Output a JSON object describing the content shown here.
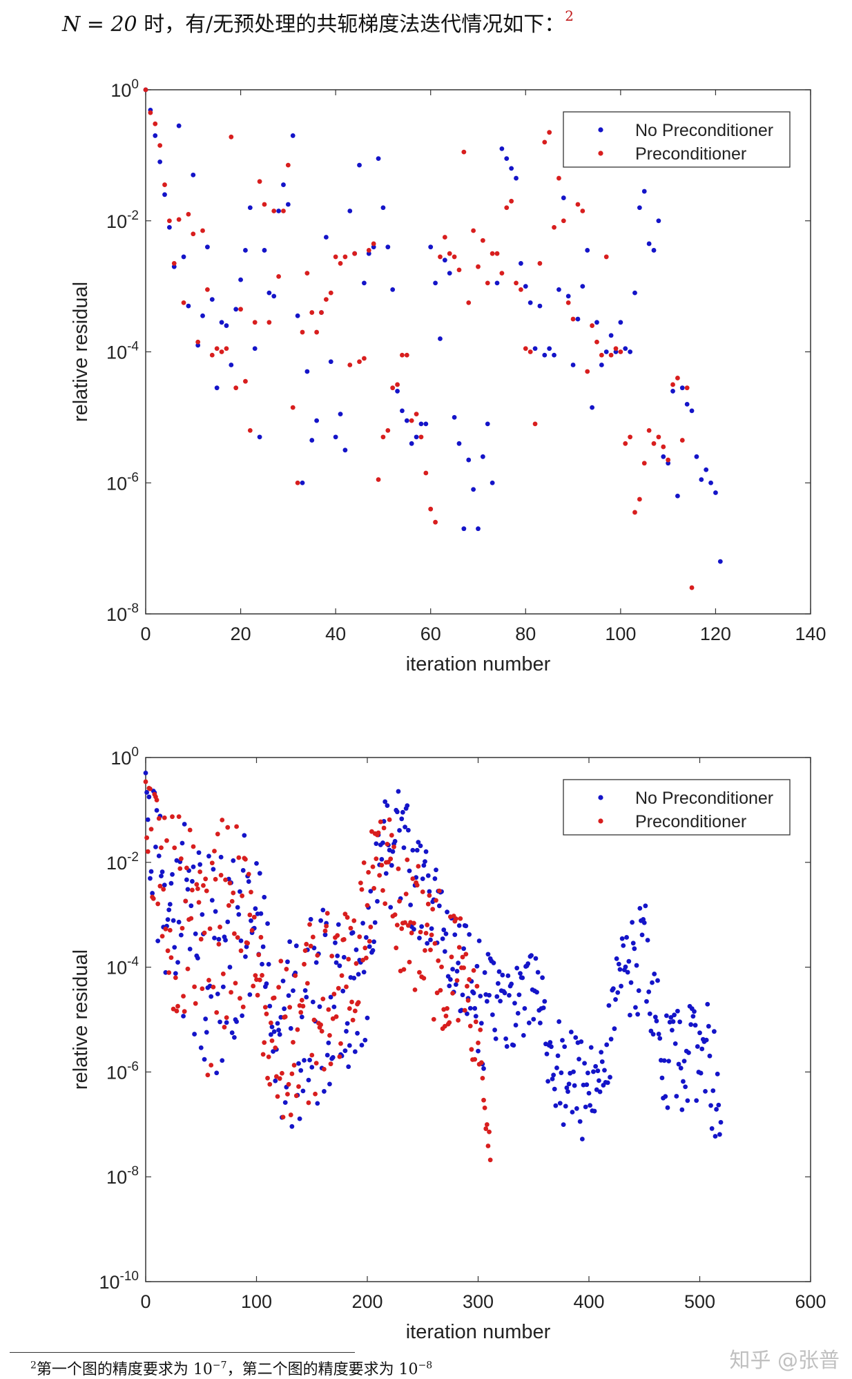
{
  "intro": {
    "math": "N = 20",
    "text": " 时，有/无预处理的共轭梯度法迭代情况如下：",
    "footnote_mark": "2"
  },
  "footnote": {
    "mark": "2",
    "prefix": "第一个图的精度要求为 10",
    "exp1": "−7",
    "middle": "，第二个图的精度要求为 10",
    "exp2": "−8"
  },
  "watermark": "知乎 @张普",
  "colors": {
    "no_precond": "#1414c8",
    "precond": "#d81e1e",
    "axis": "#333333"
  },
  "chart_data": [
    {
      "type": "scatter",
      "xlabel": "iteration number",
      "ylabel": "relative residual",
      "xlim": [
        0,
        140
      ],
      "xticks": [
        "0",
        "20",
        "40",
        "60",
        "80",
        "100",
        "120",
        "140"
      ],
      "yscale": "log",
      "ylim": [
        1e-08,
        1
      ],
      "yticks": [
        {
          "base": "10",
          "exp": "0"
        },
        {
          "base": "10",
          "exp": "-2"
        },
        {
          "base": "10",
          "exp": "-4"
        },
        {
          "base": "10",
          "exp": "-6"
        },
        {
          "base": "10",
          "exp": "-8"
        }
      ],
      "legend_position": "top-right",
      "series": [
        {
          "name": "No Preconditioner",
          "x": [
            0,
            1,
            2,
            3,
            4,
            5,
            6,
            7,
            8,
            9,
            10,
            11,
            12,
            13,
            14,
            15,
            16,
            17,
            18,
            19,
            20,
            21,
            22,
            23,
            24,
            25,
            26,
            27,
            28,
            29,
            30,
            31,
            32,
            33,
            34,
            35,
            36,
            37,
            38,
            39,
            40,
            41,
            42,
            43,
            44,
            45,
            46,
            47,
            48,
            49,
            50,
            51,
            52,
            53,
            54,
            55,
            56,
            57,
            58,
            59,
            60,
            61,
            62,
            63,
            64,
            65,
            66,
            67,
            68,
            69,
            70,
            71,
            72,
            73,
            74,
            75,
            76,
            77,
            78,
            79,
            80,
            81,
            82,
            83,
            84,
            85,
            86,
            87,
            88,
            89,
            90,
            91,
            92,
            93,
            94,
            95,
            96,
            97,
            98,
            99,
            100,
            101,
            102,
            103,
            104,
            105,
            106,
            107,
            108,
            109,
            110,
            111,
            112,
            113,
            114,
            115,
            116,
            117,
            118,
            119,
            120,
            121
          ],
          "y": [
            1.0,
            -0.31,
            -0.7,
            -1.1,
            -1.6,
            -2.1,
            -2.7,
            -0.55,
            -2.55,
            -3.3,
            -1.3,
            -3.9,
            -3.45,
            -2.4,
            -3.2,
            -4.55,
            -3.55,
            -3.6,
            -4.2,
            -3.35,
            -2.9,
            -2.45,
            -1.8,
            -3.95,
            -5.3,
            -2.45,
            -3.1,
            -3.15,
            -1.85,
            -1.45,
            -1.75,
            -0.7,
            -3.45,
            -6.0,
            -4.3,
            -5.35,
            -5.05,
            -3.4,
            -2.25,
            -4.15,
            -5.3,
            -4.95,
            -5.5,
            -1.85,
            -2.5,
            -1.15,
            -2.95,
            -2.5,
            -2.4,
            -1.05,
            -1.8,
            -2.4,
            -3.05,
            -4.6,
            -4.9,
            -5.05,
            -5.4,
            -5.3,
            -5.1,
            -5.1,
            -2.4,
            -2.95,
            -3.8,
            -2.6,
            -2.8,
            -5.0,
            -5.4,
            -6.7,
            -5.65,
            -6.1,
            -6.7,
            -5.6,
            -5.1,
            -6.0,
            -2.95,
            -0.9,
            -1.05,
            -1.2,
            -1.35,
            -2.65,
            -3.0,
            -3.25,
            -3.95,
            -3.3,
            -4.05,
            -3.95,
            -4.05,
            -3.05,
            -1.65,
            -3.15,
            -4.2,
            -3.5,
            -3.0,
            -2.45,
            -4.85,
            -3.55,
            -4.2,
            -4.0,
            -3.75,
            -4.0,
            -3.55,
            -3.95,
            -4.0,
            -3.1,
            -1.8,
            -1.55,
            -2.35,
            -2.45,
            -2.0,
            -5.6,
            -5.7,
            -4.6,
            -6.2,
            -4.55,
            -4.8,
            -4.9,
            -5.6,
            -5.95,
            -5.8,
            -6.0,
            -6.15,
            -7.2
          ],
          "y_is_log10": true
        },
        {
          "name": "Preconditioner",
          "x": [
            0,
            1,
            2,
            3,
            4,
            5,
            6,
            7,
            8,
            9,
            10,
            11,
            12,
            13,
            14,
            15,
            16,
            17,
            18,
            19,
            20,
            21,
            22,
            23,
            24,
            25,
            26,
            27,
            28,
            29,
            30,
            31,
            32,
            33,
            34,
            35,
            36,
            37,
            38,
            39,
            40,
            41,
            42,
            43,
            44,
            45,
            46,
            47,
            48,
            49,
            50,
            51,
            52,
            53,
            54,
            55,
            56,
            57,
            58,
            59,
            60,
            61,
            62,
            63,
            64,
            65,
            66,
            67,
            68,
            69,
            70,
            71,
            72,
            73,
            74,
            75,
            76,
            77,
            78,
            79,
            80,
            81,
            82,
            83,
            84,
            85,
            86,
            87,
            88,
            89,
            90,
            91,
            92,
            93,
            94,
            95,
            96,
            97,
            98,
            99,
            100,
            101,
            102,
            103,
            104,
            105,
            106,
            107,
            108,
            109,
            110,
            111,
            112,
            113,
            114,
            115
          ],
          "y": [
            0,
            -0.35,
            -0.52,
            -0.85,
            -1.45,
            -2.0,
            -2.65,
            -1.98,
            -3.25,
            -1.9,
            -2.2,
            -3.85,
            -2.15,
            -3.05,
            -4.05,
            -3.95,
            -4.0,
            -3.95,
            -0.72,
            -4.55,
            -3.35,
            -4.45,
            -5.2,
            -3.55,
            -1.4,
            -1.75,
            -3.55,
            -1.85,
            -2.85,
            -1.85,
            -1.15,
            -4.85,
            -6.0,
            -3.7,
            -2.8,
            -3.4,
            -3.7,
            -3.4,
            -3.2,
            -3.1,
            -2.55,
            -2.65,
            -2.55,
            -4.2,
            -2.5,
            -4.15,
            -4.1,
            -2.45,
            -2.35,
            -5.95,
            -5.3,
            -5.2,
            -4.55,
            -4.5,
            -4.05,
            -4.05,
            -5.05,
            -4.95,
            -5.3,
            -5.85,
            -6.4,
            -6.6,
            -2.55,
            -2.25,
            -2.5,
            -2.55,
            -2.75,
            -0.95,
            -3.25,
            -2.15,
            -2.7,
            -2.3,
            -2.95,
            -2.5,
            -2.5,
            -2.8,
            -1.8,
            -1.7,
            -2.95,
            -3.05,
            -3.95,
            -4.0,
            -5.1,
            -2.65,
            -0.8,
            -0.65,
            -2.1,
            -1.35,
            -2.0,
            -3.25,
            -3.5,
            -1.75,
            -1.85,
            -4.3,
            -3.6,
            -3.85,
            -4.05,
            -2.55,
            -4.05,
            -3.95,
            -4.0,
            -5.4,
            -5.3,
            -6.45,
            -6.25,
            -5.7,
            -5.2,
            -5.4,
            -5.3,
            -5.45,
            -5.65,
            -4.5,
            -4.4,
            -5.35,
            -4.55,
            -7.6
          ],
          "y_is_log10": true
        }
      ]
    },
    {
      "type": "scatter",
      "xlabel": "iteration number",
      "ylabel": "relative residual",
      "xlim": [
        0,
        600
      ],
      "xticks": [
        "0",
        "100",
        "200",
        "300",
        "400",
        "500",
        "600"
      ],
      "yscale": "log",
      "ylim": [
        1e-10,
        1
      ],
      "yticks": [
        {
          "base": "10",
          "exp": "0"
        },
        {
          "base": "10",
          "exp": "-2"
        },
        {
          "base": "10",
          "exp": "-4"
        },
        {
          "base": "10",
          "exp": "-6"
        },
        {
          "base": "10",
          "exp": "-8"
        },
        {
          "base": "10",
          "exp": "-10"
        }
      ],
      "legend_position": "top-right",
      "series": [
        {
          "name": "No Preconditioner",
          "generated": true,
          "npoints": 520,
          "envelope": [
            [
              0,
              -0.1,
              -2.3
            ],
            [
              20,
              -1.2,
              -4.5
            ],
            [
              40,
              -1.0,
              -5.8
            ],
            [
              60,
              -2.0,
              -6.8
            ],
            [
              80,
              -1.0,
              -5.5
            ],
            [
              100,
              -1.8,
              -4.5
            ],
            [
              120,
              -4.0,
              -7.2
            ],
            [
              140,
              -3.0,
              -7.6
            ],
            [
              160,
              -2.5,
              -6.5
            ],
            [
              180,
              -3.0,
              -6.3
            ],
            [
              195,
              -3.3,
              -6.7
            ],
            [
              210,
              -0.8,
              -2.5
            ],
            [
              230,
              -0.6,
              -3.2
            ],
            [
              250,
              -1.6,
              -3.6
            ],
            [
              270,
              -2.5,
              -4.2
            ],
            [
              290,
              -3.2,
              -5.2
            ],
            [
              310,
              -3.7,
              -6.2
            ],
            [
              330,
              -4.0,
              -5.8
            ],
            [
              350,
              -3.7,
              -5.2
            ],
            [
              370,
              -4.8,
              -7.3
            ],
            [
              390,
              -5.3,
              -7.5
            ],
            [
              410,
              -5.6,
              -7.0
            ],
            [
              430,
              -3.2,
              -5.0
            ],
            [
              450,
              -2.7,
              -5.2
            ],
            [
              470,
              -4.8,
              -7.0
            ],
            [
              490,
              -4.7,
              -6.8
            ],
            [
              510,
              -4.5,
              -7.2
            ],
            [
              520,
              -6.2,
              -8.0
            ]
          ]
        },
        {
          "name": "Preconditioner",
          "generated": true,
          "npoints": 312,
          "envelope": [
            [
              0,
              0.0,
              -2.0
            ],
            [
              20,
              -1.0,
              -4.5
            ],
            [
              40,
              -1.0,
              -6.0
            ],
            [
              60,
              -1.3,
              -6.3
            ],
            [
              80,
              -0.6,
              -5.0
            ],
            [
              100,
              -3.0,
              -4.5
            ],
            [
              110,
              -4.0,
              -6.5
            ],
            [
              130,
              -3.2,
              -7.6
            ],
            [
              150,
              -3.0,
              -6.5
            ],
            [
              170,
              -2.8,
              -6.6
            ],
            [
              190,
              -2.8,
              -5.2
            ],
            [
              205,
              -1.0,
              -3.5
            ],
            [
              215,
              -0.7,
              -2.7
            ],
            [
              230,
              -1.6,
              -4.3
            ],
            [
              250,
              -2.0,
              -4.6
            ],
            [
              270,
              -2.7,
              -5.4
            ],
            [
              290,
              -3.2,
              -5.6
            ],
            [
              300,
              -4.3,
              -6.2
            ],
            [
              312,
              -7.7,
              -8.0
            ]
          ]
        }
      ]
    }
  ]
}
